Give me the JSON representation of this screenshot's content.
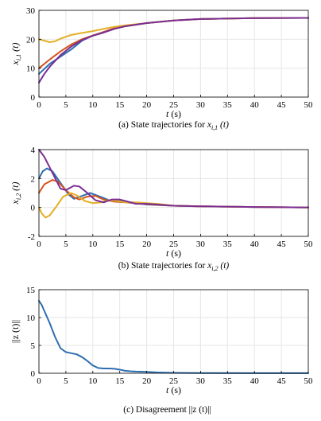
{
  "colors": {
    "series_blue": "#2E6EB0",
    "series_orange": "#D4541B",
    "series_yellow": "#E3AE25",
    "series_purple": "#7B2D93",
    "axis": "#000000",
    "grid": "#e6e6e6"
  },
  "chart_data": [
    {
      "type": "line",
      "caption": "(a) State trajectories for x",
      "caption_sub": "i,1",
      "caption_tail": " (t)",
      "xlabel": "t (s)",
      "ylabel": "x",
      "ylabel_sub": "i,1",
      "ylabel_tail": " (t)",
      "xlim": [
        0,
        50
      ],
      "ylim": [
        0,
        30
      ],
      "xticks": [
        0,
        5,
        10,
        15,
        20,
        25,
        30,
        35,
        40,
        45,
        50
      ],
      "yticks": [
        0,
        10,
        20,
        30
      ],
      "grid": true,
      "series": [
        {
          "color": "series_blue",
          "points": [
            [
              0,
              8
            ],
            [
              2,
              11.5
            ],
            [
              4,
              14
            ],
            [
              6,
              16.5
            ],
            [
              8,
              19.5
            ],
            [
              10,
              21.3
            ],
            [
              12,
              22.5
            ],
            [
              14,
              23.8
            ],
            [
              16,
              24.5
            ],
            [
              20,
              25.6
            ],
            [
              25,
              26.5
            ],
            [
              30,
              27
            ],
            [
              40,
              27.3
            ],
            [
              50,
              27.4
            ]
          ]
        },
        {
          "color": "series_orange",
          "points": [
            [
              0,
              10
            ],
            [
              2,
              13
            ],
            [
              4,
              15.8
            ],
            [
              6,
              18.2
            ],
            [
              8,
              20
            ],
            [
              10,
              21.3
            ],
            [
              12,
              22.5
            ],
            [
              14,
              23.8
            ],
            [
              16,
              24.5
            ],
            [
              20,
              25.6
            ],
            [
              25,
              26.5
            ],
            [
              30,
              27
            ],
            [
              40,
              27.3
            ],
            [
              50,
              27.4
            ]
          ]
        },
        {
          "color": "series_yellow",
          "points": [
            [
              0,
              20
            ],
            [
              1,
              19.5
            ],
            [
              2,
              19
            ],
            [
              3,
              19.3
            ],
            [
              4,
              20.2
            ],
            [
              6,
              21.5
            ],
            [
              8,
              22.2
            ],
            [
              10,
              22.8
            ],
            [
              12,
              23.6
            ],
            [
              14,
              24.3
            ],
            [
              16,
              24.8
            ],
            [
              20,
              25.6
            ],
            [
              25,
              26.5
            ],
            [
              30,
              27
            ],
            [
              40,
              27.3
            ],
            [
              50,
              27.4
            ]
          ]
        },
        {
          "color": "series_purple",
          "points": [
            [
              0,
              5
            ],
            [
              1,
              8
            ],
            [
              2,
              10.5
            ],
            [
              4,
              14.5
            ],
            [
              6,
              17.5
            ],
            [
              8,
              19.7
            ],
            [
              10,
              21.2
            ],
            [
              12,
              22.3
            ],
            [
              14,
              23.6
            ],
            [
              16,
              24.5
            ],
            [
              20,
              25.6
            ],
            [
              25,
              26.5
            ],
            [
              30,
              27
            ],
            [
              40,
              27.3
            ],
            [
              50,
              27.4
            ]
          ]
        }
      ]
    },
    {
      "type": "line",
      "caption": "(b) State trajectories for x",
      "caption_sub": "i,2",
      "caption_tail": " (t)",
      "xlabel": "t (s)",
      "ylabel": "x",
      "ylabel_sub": "i,2",
      "ylabel_tail": " (t)",
      "xlim": [
        0,
        50
      ],
      "ylim": [
        -2,
        4
      ],
      "xticks": [
        0,
        5,
        10,
        15,
        20,
        25,
        30,
        35,
        40,
        45,
        50
      ],
      "yticks": [
        -2,
        0,
        2,
        4
      ],
      "grid": true,
      "series": [
        {
          "color": "series_blue",
          "points": [
            [
              0,
              2
            ],
            [
              0.7,
              2.5
            ],
            [
              1.5,
              2.7
            ],
            [
              2.5,
              2.5
            ],
            [
              4,
              1.7
            ],
            [
              5.5,
              0.9
            ],
            [
              6.5,
              0.6
            ],
            [
              8,
              0.8
            ],
            [
              9.5,
              1.0
            ],
            [
              11,
              0.8
            ],
            [
              13,
              0.5
            ],
            [
              15,
              0.45
            ],
            [
              17,
              0.35
            ],
            [
              20,
              0.2
            ],
            [
              25,
              0.12
            ],
            [
              30,
              0.08
            ],
            [
              40,
              0.03
            ],
            [
              50,
              0.0
            ]
          ]
        },
        {
          "color": "series_orange",
          "points": [
            [
              0,
              1
            ],
            [
              1,
              1.6
            ],
            [
              2.5,
              1.9
            ],
            [
              3.5,
              1.8
            ],
            [
              5,
              1.2
            ],
            [
              6.5,
              0.7
            ],
            [
              7.5,
              0.55
            ],
            [
              9,
              0.75
            ],
            [
              10.5,
              0.8
            ],
            [
              12,
              0.55
            ],
            [
              14,
              0.4
            ],
            [
              16,
              0.35
            ],
            [
              18,
              0.3
            ],
            [
              21,
              0.2
            ],
            [
              25,
              0.12
            ],
            [
              30,
              0.08
            ],
            [
              40,
              0.03
            ],
            [
              50,
              0.0
            ]
          ]
        },
        {
          "color": "series_yellow",
          "points": [
            [
              0,
              0
            ],
            [
              0.5,
              -0.4
            ],
            [
              1.2,
              -0.7
            ],
            [
              2,
              -0.55
            ],
            [
              3.2,
              0.05
            ],
            [
              4.5,
              0.75
            ],
            [
              6,
              1.0
            ],
            [
              7.2,
              0.8
            ],
            [
              8.5,
              0.45
            ],
            [
              10,
              0.3
            ],
            [
              11.5,
              0.35
            ],
            [
              13,
              0.5
            ],
            [
              14.5,
              0.45
            ],
            [
              16,
              0.35
            ],
            [
              18,
              0.35
            ],
            [
              20,
              0.3
            ],
            [
              22,
              0.25
            ],
            [
              25,
              0.12
            ],
            [
              30,
              0.08
            ],
            [
              40,
              0.03
            ],
            [
              50,
              0.0
            ]
          ]
        },
        {
          "color": "series_purple",
          "points": [
            [
              0,
              4
            ],
            [
              1,
              3.5
            ],
            [
              2.5,
              2.4
            ],
            [
              4,
              1.3
            ],
            [
              5,
              1.2
            ],
            [
              6.5,
              1.5
            ],
            [
              7.5,
              1.45
            ],
            [
              9,
              1.0
            ],
            [
              10.5,
              0.5
            ],
            [
              12,
              0.35
            ],
            [
              13.5,
              0.55
            ],
            [
              15,
              0.55
            ],
            [
              16.5,
              0.4
            ],
            [
              18,
              0.25
            ],
            [
              20,
              0.25
            ],
            [
              22,
              0.2
            ],
            [
              25,
              0.12
            ],
            [
              30,
              0.08
            ],
            [
              40,
              0.03
            ],
            [
              50,
              0.0
            ]
          ]
        }
      ]
    },
    {
      "type": "line",
      "caption": "(c) Disagreement ||z (t)||",
      "xlabel": "t (s)",
      "ylabel": "||z (t)||",
      "xlim": [
        0,
        50
      ],
      "ylim": [
        0,
        15
      ],
      "xticks": [
        0,
        5,
        10,
        15,
        20,
        25,
        30,
        35,
        40,
        45,
        50
      ],
      "yticks": [
        0,
        5,
        10,
        15
      ],
      "grid": true,
      "series": [
        {
          "color": "series_blue",
          "points": [
            [
              0,
              13
            ],
            [
              0.5,
              12.3
            ],
            [
              1,
              11.2
            ],
            [
              2,
              9
            ],
            [
              3,
              6.5
            ],
            [
              4,
              4.5
            ],
            [
              5,
              3.8
            ],
            [
              6,
              3.6
            ],
            [
              7,
              3.4
            ],
            [
              8,
              2.9
            ],
            [
              9,
              2.2
            ],
            [
              10,
              1.4
            ],
            [
              11,
              0.95
            ],
            [
              12,
              0.85
            ],
            [
              13,
              0.85
            ],
            [
              14,
              0.8
            ],
            [
              15,
              0.65
            ],
            [
              16,
              0.45
            ],
            [
              17,
              0.35
            ],
            [
              18,
              0.3
            ],
            [
              20,
              0.25
            ],
            [
              22,
              0.15
            ],
            [
              25,
              0.08
            ],
            [
              30,
              0.04
            ],
            [
              40,
              0.02
            ],
            [
              50,
              0.01
            ]
          ]
        }
      ]
    }
  ]
}
